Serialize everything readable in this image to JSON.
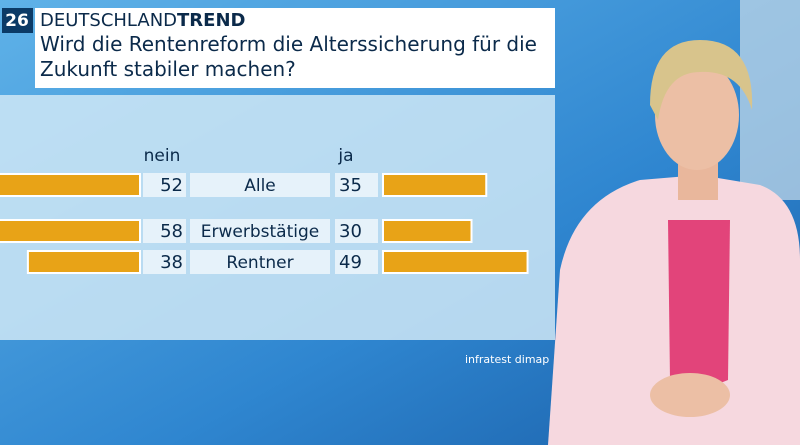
{
  "chart_data": {
    "type": "butterfly",
    "badge": "26",
    "brand": [
      "DEUTSCHLAND",
      "TREND"
    ],
    "title": "Wird die Rentenreform die Alterssicherung für die Zukunft stabiler machen?",
    "categories": [
      "Alle",
      "Erwerbstätige",
      "Rentner"
    ],
    "series": [
      {
        "name": "nein",
        "color": "#e8a317",
        "values": [
          52,
          58,
          38
        ]
      },
      {
        "name": "ja",
        "color": "#e8a317",
        "values": [
          35,
          30,
          49
        ]
      }
    ],
    "source": "infratest dimap"
  }
}
